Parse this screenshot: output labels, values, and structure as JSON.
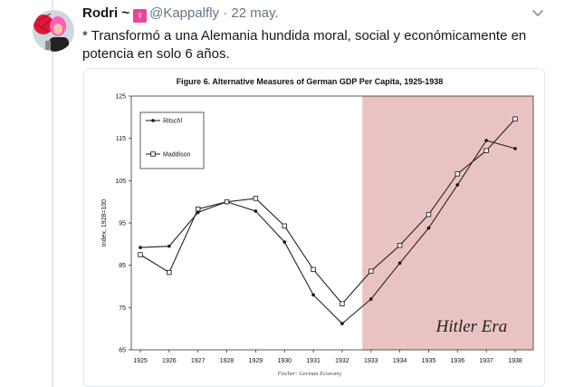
{
  "tweet": {
    "display_name": "Rodri ~",
    "emoji": "♀",
    "handle": "@Kappalfly",
    "separator": "·",
    "date": "22 may.",
    "text_line1": "* Transformó a una Alemania hundida moral, social y económicamente en",
    "text_line2": "potencia en solo 6 años."
  },
  "icons": {
    "avatar": "avatar-photo",
    "more": "chevron-down-icon"
  },
  "colors": {
    "shaded_region": "#e9c3c3",
    "line": "#222222"
  },
  "chart_data": {
    "type": "line",
    "title": "Figure 6. Alternative Measures of German GDP Per Capita, 1925-1938",
    "ylabel": "Index, 1928=100",
    "source": "Fischer: German Economy",
    "annotation": "Hitler Era",
    "categories": [
      "1925",
      "1926",
      "1927",
      "1928",
      "1929",
      "1930",
      "1931",
      "1932",
      "1933",
      "1934",
      "1935",
      "1936",
      "1937",
      "1938"
    ],
    "yticks": [
      "125",
      "115",
      "105",
      "95",
      "85",
      "75",
      "65"
    ],
    "ylim": [
      65,
      125
    ],
    "shaded_from": 1932.7,
    "series": [
      {
        "name": "Ritschl",
        "marker": "dot",
        "values": [
          89.2,
          89.5,
          97.5,
          100,
          97.8,
          90.5,
          78,
          71.2,
          77,
          85.5,
          93.8,
          104,
          114.5,
          112.6
        ]
      },
      {
        "name": "Maddison",
        "marker": "square",
        "values": [
          87.5,
          83.3,
          98.3,
          100,
          100.8,
          94.3,
          84,
          75.9,
          83.6,
          89.7,
          97,
          106.6,
          112.1,
          119.6
        ]
      }
    ],
    "legend_position": "top-left",
    "grid": false
  }
}
